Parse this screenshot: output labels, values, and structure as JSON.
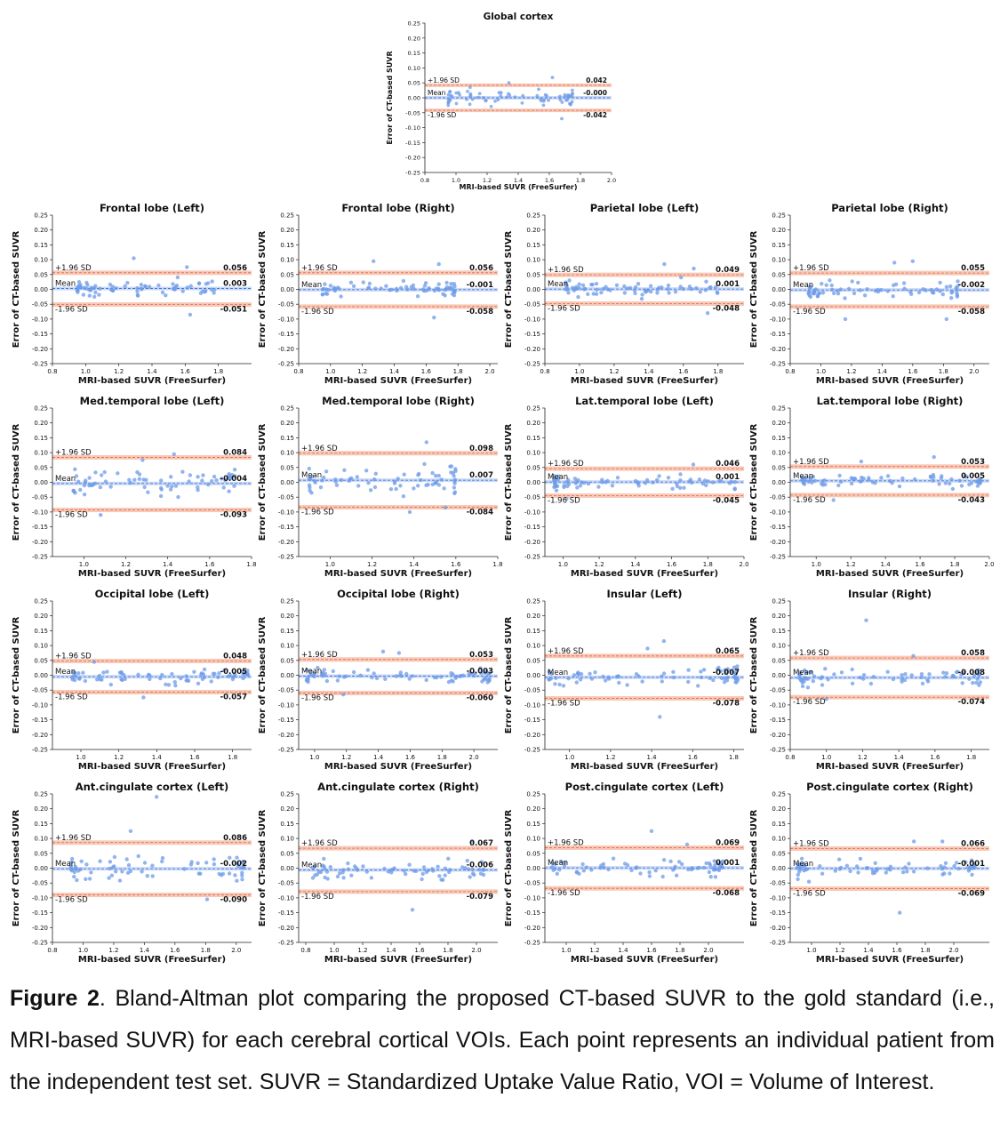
{
  "caption": {
    "label": "Figure 2",
    "text": ". Bland-Altman plot comparing the proposed CT-based SUVR to the gold standard (i.e., MRI-based SUVR) for each cerebral cortical VOIs. Each point represents an individual patient from the independent test set. SUVR = Standardized Uptake Value Ratio, VOI = Volume of Interest."
  },
  "colors": {
    "points": "#6d9be8",
    "mean_line": "#4a78d8",
    "mean_band": "#c9d9f6",
    "loa_line": "#e0674a",
    "loa_band": "#f8c8b6"
  },
  "labels": {
    "upper": "+1.96 SD",
    "mean": "Mean",
    "lower": "-1.96 SD"
  },
  "chart_data": [
    {
      "type": "scatter",
      "title": "Global cortex",
      "xlabel": "MRI-based SUVR (FreeSurfer)",
      "ylabel": "Error of CT-based SUVR",
      "xlim": [
        0.8,
        2.0
      ],
      "xticks": [
        "0.8",
        "1.0",
        "1.2",
        "1.4",
        "1.6",
        "1.8",
        "2.0"
      ],
      "ylim": [
        -0.25,
        0.25
      ],
      "upper": 0.042,
      "mean": -0.0,
      "lower": -0.042,
      "upper_label": "0.042",
      "mean_label": "-0.000",
      "lower_label": "-0.042",
      "x_range": [
        0.95,
        1.75
      ],
      "spread": 0.022,
      "outliers": [
        [
          1.62,
          0.068
        ],
        [
          1.68,
          -0.07
        ],
        [
          1.09,
          0.035
        ],
        [
          1.34,
          0.05
        ]
      ]
    },
    {
      "type": "scatter",
      "title": "Frontal lobe (Left)",
      "xlabel": "MRI-based SUVR (FreeSurfer)",
      "ylabel": "Error of CT-based SUVR",
      "xlim": [
        0.8,
        2.0
      ],
      "xticks": [
        "0.8",
        "1.0",
        "1.2",
        "1.4",
        "1.6",
        "1.8"
      ],
      "ylim": [
        -0.25,
        0.25
      ],
      "upper": 0.056,
      "mean": 0.003,
      "lower": -0.051,
      "upper_label": "0.056",
      "mean_label": "0.003",
      "lower_label": "-0.051",
      "x_range": [
        0.95,
        1.78
      ],
      "spread": 0.025,
      "outliers": [
        [
          1.29,
          0.105
        ],
        [
          1.63,
          -0.085
        ],
        [
          1.61,
          0.075
        ]
      ]
    },
    {
      "type": "scatter",
      "title": "Frontal lobe (Right)",
      "xlabel": "MRI-based SUVR (FreeSurfer)",
      "ylabel": "Error of CT-based SUVR",
      "xlim": [
        0.8,
        2.05
      ],
      "xticks": [
        "0.8",
        "1.0",
        "1.2",
        "1.4",
        "1.6",
        "1.8",
        "2.0"
      ],
      "ylim": [
        -0.25,
        0.25
      ],
      "upper": 0.056,
      "mean": -0.001,
      "lower": -0.058,
      "upper_label": "0.056",
      "mean_label": "-0.001",
      "lower_label": "-0.058",
      "x_range": [
        0.95,
        1.78
      ],
      "spread": 0.025,
      "outliers": [
        [
          1.27,
          0.095
        ],
        [
          1.65,
          -0.095
        ],
        [
          1.68,
          0.085
        ]
      ]
    },
    {
      "type": "scatter",
      "title": "Parietal lobe (Left)",
      "xlabel": "MRI-based SUVR (FreeSurfer)",
      "ylabel": "Error of CT-based SUVR",
      "xlim": [
        0.8,
        1.95
      ],
      "xticks": [
        "0.8",
        "1.0",
        "1.2",
        "1.4",
        "1.6",
        "1.8"
      ],
      "ylim": [
        -0.25,
        0.25
      ],
      "upper": 0.049,
      "mean": 0.001,
      "lower": -0.048,
      "upper_label": "0.049",
      "mean_label": "0.001",
      "lower_label": "-0.048",
      "x_range": [
        0.92,
        1.8
      ],
      "spread": 0.025,
      "outliers": [
        [
          1.49,
          0.085
        ],
        [
          1.74,
          -0.08
        ],
        [
          1.66,
          0.07
        ]
      ]
    },
    {
      "type": "scatter",
      "title": "Parietal lobe (Right)",
      "xlabel": "MRI-based SUVR (FreeSurfer)",
      "ylabel": "Error of CT-based SUVR",
      "xlim": [
        0.8,
        2.1
      ],
      "xticks": [
        "0.8",
        "1.0",
        "1.2",
        "1.4",
        "1.6",
        "1.8",
        "2.0"
      ],
      "ylim": [
        -0.25,
        0.25
      ],
      "upper": 0.055,
      "mean": -0.002,
      "lower": -0.058,
      "upper_label": "0.055",
      "mean_label": "-0.002",
      "lower_label": "-0.058",
      "x_range": [
        0.92,
        1.9
      ],
      "spread": 0.025,
      "outliers": [
        [
          1.6,
          0.095
        ],
        [
          1.16,
          -0.1
        ],
        [
          1.82,
          -0.1
        ],
        [
          1.48,
          0.09
        ]
      ]
    },
    {
      "type": "scatter",
      "title": "Med.temporal lobe (Left)",
      "xlabel": "MRI-based SUVR (FreeSurfer)",
      "ylabel": "Error of CT-based SUVR",
      "xlim": [
        0.85,
        1.8
      ],
      "xticks": [
        "1.0",
        "1.2",
        "1.4",
        "1.6",
        "1.8"
      ],
      "ylim": [
        -0.25,
        0.25
      ],
      "upper": 0.084,
      "mean": -0.004,
      "lower": -0.093,
      "upper_label": "0.084",
      "mean_label": "-0.004",
      "lower_label": "-0.093",
      "x_range": [
        0.95,
        1.72
      ],
      "spread": 0.045,
      "outliers": [
        [
          1.43,
          0.095
        ],
        [
          1.08,
          -0.11
        ],
        [
          1.28,
          0.075
        ]
      ]
    },
    {
      "type": "scatter",
      "title": "Med.temporal lobe (Right)",
      "xlabel": "MRI-based SUVR (FreeSurfer)",
      "ylabel": "Error of CT-based SUVR",
      "xlim": [
        0.85,
        1.8
      ],
      "xticks": [
        "1.0",
        "1.2",
        "1.4",
        "1.6",
        "1.8"
      ],
      "ylim": [
        -0.25,
        0.25
      ],
      "upper": 0.098,
      "mean": 0.007,
      "lower": -0.084,
      "upper_label": "0.098",
      "mean_label": "0.007",
      "lower_label": "-0.084",
      "x_range": [
        0.9,
        1.6
      ],
      "spread": 0.048,
      "outliers": [
        [
          1.46,
          0.135
        ],
        [
          1.38,
          -0.1
        ],
        [
          1.55,
          -0.085
        ]
      ]
    },
    {
      "type": "scatter",
      "title": "Lat.temporal lobe (Left)",
      "xlabel": "MRI-based SUVR (FreeSurfer)",
      "ylabel": "Error of CT-based SUVR",
      "xlim": [
        0.9,
        2.0
      ],
      "xticks": [
        "1.0",
        "1.2",
        "1.4",
        "1.6",
        "1.8",
        "2.0"
      ],
      "ylim": [
        -0.25,
        0.25
      ],
      "upper": 0.046,
      "mean": 0.001,
      "lower": -0.045,
      "upper_label": "0.046",
      "mean_label": "0.001",
      "lower_label": "-0.045",
      "x_range": [
        0.95,
        1.95
      ],
      "spread": 0.02,
      "outliers": [
        [
          1.72,
          0.06
        ],
        [
          1.02,
          -0.055
        ]
      ]
    },
    {
      "type": "scatter",
      "title": "Lat.temporal lobe (Right)",
      "xlabel": "MRI-based SUVR (FreeSurfer)",
      "ylabel": "Error of CT-based SUVR",
      "xlim": [
        0.85,
        2.0
      ],
      "xticks": [
        "1.0",
        "1.2",
        "1.4",
        "1.6",
        "1.8",
        "2.0"
      ],
      "ylim": [
        -0.25,
        0.25
      ],
      "upper": 0.053,
      "mean": 0.005,
      "lower": -0.043,
      "upper_label": "0.053",
      "mean_label": "0.005",
      "lower_label": "-0.043",
      "x_range": [
        0.92,
        1.95
      ],
      "spread": 0.02,
      "outliers": [
        [
          1.68,
          0.085
        ],
        [
          1.26,
          0.07
        ],
        [
          1.1,
          -0.06
        ]
      ]
    },
    {
      "type": "scatter",
      "title": "Occipital lobe (Left)",
      "xlabel": "MRI-based SUVR (FreeSurfer)",
      "ylabel": "Error of CT-based SUVR",
      "xlim": [
        0.85,
        1.9
      ],
      "xticks": [
        "1.0",
        "1.2",
        "1.4",
        "1.6",
        "1.8"
      ],
      "ylim": [
        -0.25,
        0.25
      ],
      "upper": 0.048,
      "mean": -0.005,
      "lower": -0.057,
      "upper_label": "0.048",
      "mean_label": "-0.005",
      "lower_label": "-0.057",
      "x_range": [
        0.95,
        1.88
      ],
      "spread": 0.022,
      "outliers": [
        [
          1.33,
          -0.075
        ],
        [
          1.07,
          0.045
        ]
      ]
    },
    {
      "type": "scatter",
      "title": "Occipital lobe (Right)",
      "xlabel": "MRI-based SUVR (FreeSurfer)",
      "ylabel": "Error of CT-based SUVR",
      "xlim": [
        0.9,
        2.15
      ],
      "xticks": [
        "1.0",
        "1.2",
        "1.4",
        "1.6",
        "1.8",
        "2.0"
      ],
      "ylim": [
        -0.25,
        0.25
      ],
      "upper": 0.053,
      "mean": -0.003,
      "lower": -0.06,
      "upper_label": "0.053",
      "mean_label": "-0.003",
      "lower_label": "-0.060",
      "x_range": [
        0.95,
        2.1
      ],
      "spread": 0.022,
      "outliers": [
        [
          1.43,
          0.08
        ],
        [
          1.53,
          0.075
        ],
        [
          1.18,
          -0.065
        ]
      ]
    },
    {
      "type": "scatter",
      "title": "Insular (Left)",
      "xlabel": "MRI-based SUVR (FreeSurfer)",
      "ylabel": "Error of CT-based SUVR",
      "xlim": [
        0.88,
        1.85
      ],
      "xticks": [
        "1.0",
        "1.2",
        "1.4",
        "1.6",
        "1.8"
      ],
      "ylim": [
        -0.25,
        0.25
      ],
      "upper": 0.065,
      "mean": -0.007,
      "lower": -0.078,
      "upper_label": "0.065",
      "mean_label": "-0.007",
      "lower_label": "-0.078",
      "x_range": [
        0.9,
        1.82
      ],
      "spread": 0.03,
      "outliers": [
        [
          1.46,
          0.115
        ],
        [
          1.44,
          -0.14
        ],
        [
          1.38,
          0.09
        ]
      ]
    },
    {
      "type": "scatter",
      "title": "Insular (Right)",
      "xlabel": "MRI-based SUVR (FreeSurfer)",
      "ylabel": "Error of CT-based SUVR",
      "xlim": [
        0.8,
        1.9
      ],
      "xticks": [
        "0.8",
        "1.0",
        "1.2",
        "1.4",
        "1.6",
        "1.8"
      ],
      "ylim": [
        -0.25,
        0.25
      ],
      "upper": 0.058,
      "mean": -0.008,
      "lower": -0.074,
      "upper_label": "0.058",
      "mean_label": "-0.008",
      "lower_label": "-0.074",
      "x_range": [
        0.85,
        1.85
      ],
      "spread": 0.028,
      "outliers": [
        [
          1.22,
          0.185
        ],
        [
          1.0,
          -0.08
        ],
        [
          1.48,
          0.065
        ]
      ]
    },
    {
      "type": "scatter",
      "title": "Ant.cingulate cortex (Left)",
      "xlabel": "MRI-based SUVR (FreeSurfer)",
      "ylabel": "Error of CT-based SUVR",
      "xlim": [
        0.8,
        2.1
      ],
      "xticks": [
        "0.8",
        "1.0",
        "1.2",
        "1.4",
        "1.6",
        "1.8",
        "2.0"
      ],
      "ylim": [
        -0.25,
        0.25
      ],
      "upper": 0.086,
      "mean": -0.002,
      "lower": -0.09,
      "upper_label": "0.086",
      "mean_label": "-0.002",
      "lower_label": "-0.090",
      "x_range": [
        0.92,
        2.05
      ],
      "spread": 0.035,
      "outliers": [
        [
          1.48,
          0.24
        ],
        [
          1.31,
          0.125
        ],
        [
          1.81,
          -0.105
        ]
      ]
    },
    {
      "type": "scatter",
      "title": "Ant.cingulate cortex (Right)",
      "xlabel": "MRI-based SUVR (FreeSurfer)",
      "ylabel": "Error of CT-based SUVR",
      "xlim": [
        0.75,
        2.15
      ],
      "xticks": [
        "0.8",
        "1.0",
        "1.2",
        "1.4",
        "1.6",
        "1.8",
        "2.0"
      ],
      "ylim": [
        -0.25,
        0.25
      ],
      "upper": 0.067,
      "mean": -0.006,
      "lower": -0.079,
      "upper_label": "0.067",
      "mean_label": "-0.006",
      "lower_label": "-0.079",
      "x_range": [
        0.85,
        2.05
      ],
      "spread": 0.032,
      "outliers": [
        [
          1.55,
          -0.14
        ],
        [
          1.97,
          0.09
        ]
      ]
    },
    {
      "type": "scatter",
      "title": "Post.cingulate cortex (Left)",
      "xlabel": "MRI-based SUVR (FreeSurfer)",
      "ylabel": "Error of CT-based SUVR",
      "xlim": [
        0.85,
        2.25
      ],
      "xticks": [
        "1.0",
        "1.2",
        "1.4",
        "1.6",
        "1.8",
        "2.0"
      ],
      "ylim": [
        -0.25,
        0.25
      ],
      "upper": 0.069,
      "mean": 0.001,
      "lower": -0.068,
      "upper_label": "0.069",
      "mean_label": "0.001",
      "lower_label": "-0.068",
      "x_range": [
        0.9,
        2.1
      ],
      "spread": 0.03,
      "outliers": [
        [
          1.6,
          0.125
        ],
        [
          1.85,
          0.08
        ]
      ]
    },
    {
      "type": "scatter",
      "title": "Post.cingulate cortex (Right)",
      "xlabel": "MRI-based SUVR (FreeSurfer)",
      "ylabel": "Error of CT-based SUVR",
      "xlim": [
        0.85,
        2.25
      ],
      "xticks": [
        "1.0",
        "1.2",
        "1.4",
        "1.6",
        "1.8",
        "2.0"
      ],
      "ylim": [
        -0.25,
        0.25
      ],
      "upper": 0.066,
      "mean": -0.001,
      "lower": -0.069,
      "upper_label": "0.066",
      "mean_label": "-0.001",
      "lower_label": "-0.069",
      "x_range": [
        0.9,
        2.15
      ],
      "spread": 0.03,
      "outliers": [
        [
          1.62,
          -0.15
        ],
        [
          1.92,
          0.09
        ],
        [
          1.72,
          0.09
        ]
      ]
    }
  ]
}
